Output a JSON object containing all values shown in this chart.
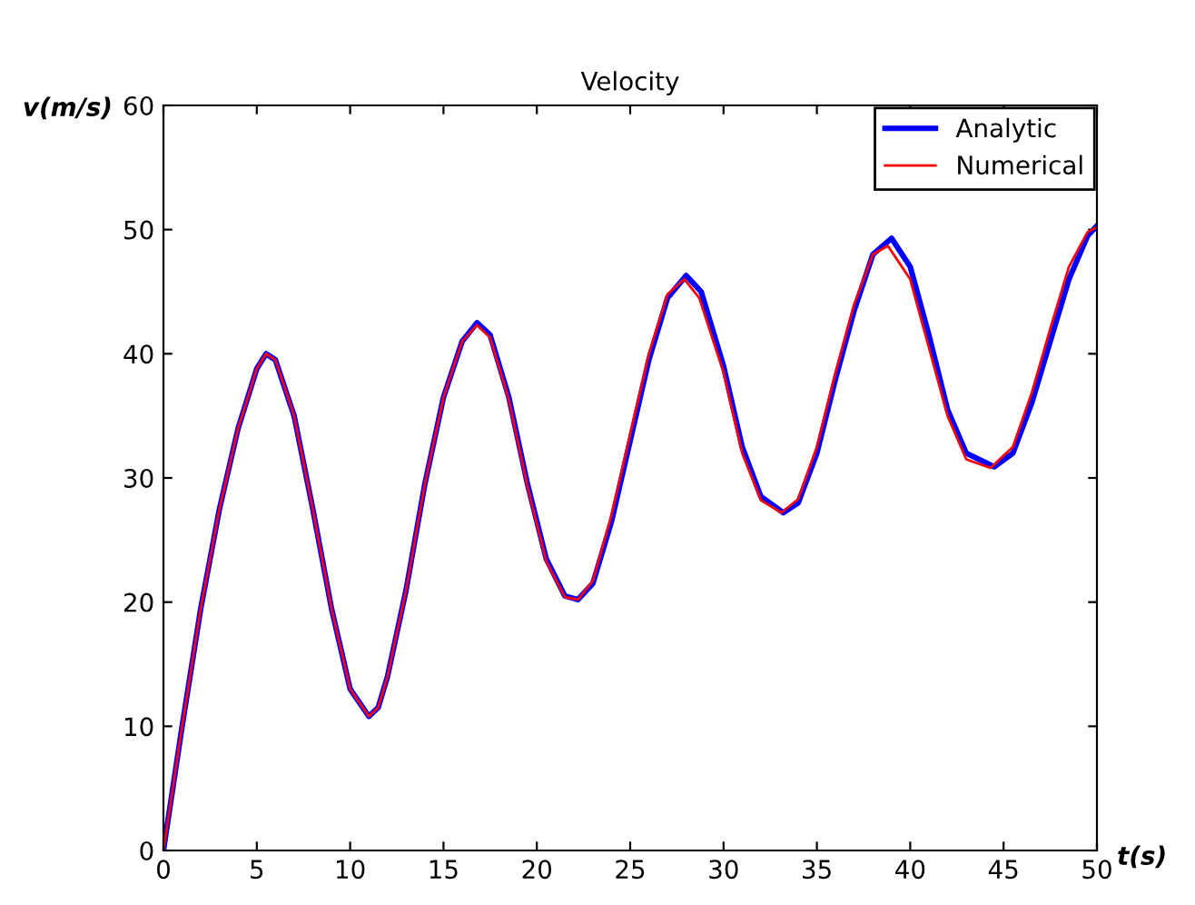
{
  "chart_data": {
    "type": "line",
    "title": "Velocity",
    "xlabel": "t(s)",
    "ylabel": "v(m/s)",
    "xlim": [
      0,
      50
    ],
    "ylim": [
      0,
      60
    ],
    "xticks": [
      0,
      5,
      10,
      15,
      20,
      25,
      30,
      35,
      40,
      45,
      50
    ],
    "yticks": [
      0,
      10,
      20,
      30,
      40,
      50,
      60
    ],
    "grid": false,
    "legend": "top right",
    "series": [
      {
        "name": "Analytic",
        "color": "#0000ff",
        "x": [
          0,
          1,
          2,
          3,
          4,
          5,
          5.5,
          6,
          7,
          8,
          9,
          10,
          11,
          11.5,
          12,
          13,
          14,
          15,
          16,
          16.8,
          17.5,
          18.5,
          19.5,
          20.5,
          21.5,
          22.2,
          23,
          24,
          25,
          26,
          27,
          28,
          28.8,
          30,
          31,
          32,
          33.2,
          34,
          35,
          36,
          37,
          38,
          39,
          40,
          41,
          42,
          43,
          44.5,
          45.5,
          46.5,
          47.5,
          48.5,
          49.5,
          50
        ],
        "values": [
          0,
          10,
          19.5,
          27.5,
          34,
          38.8,
          40,
          39.5,
          35,
          27.5,
          19.5,
          13,
          10.8,
          11.5,
          14,
          21,
          29.5,
          36.5,
          41,
          42.5,
          41.5,
          36.5,
          29.5,
          23.5,
          20.5,
          20.2,
          21.5,
          26.5,
          33,
          39.5,
          44.5,
          46.3,
          45,
          39,
          32.5,
          28.5,
          27.2,
          28,
          32,
          38,
          43.5,
          48,
          49.3,
          47,
          41.5,
          35.5,
          32,
          30.9,
          32,
          36,
          41,
          46,
          49.5,
          50.3
        ]
      },
      {
        "name": "Numerical",
        "color": "#ff0000",
        "x": [
          0,
          1,
          2,
          3,
          4,
          5,
          5.5,
          6,
          7,
          8,
          9,
          10,
          11,
          11.5,
          12,
          13,
          14,
          15,
          16,
          16.8,
          17.5,
          18.5,
          19.5,
          20.5,
          21.5,
          22.2,
          23,
          24,
          25,
          26,
          27,
          27.9,
          28.7,
          30,
          31,
          32,
          33.1,
          34,
          35,
          36,
          37,
          38,
          38.8,
          40,
          41,
          42,
          43,
          44.3,
          45.5,
          46.5,
          47.5,
          48.5,
          49.5,
          50
        ],
        "values": [
          0,
          10,
          19.5,
          27.5,
          34,
          38.8,
          40,
          39.5,
          35,
          27.5,
          19.5,
          13,
          10.8,
          11.5,
          14,
          21,
          29.5,
          36.5,
          41,
          42.3,
          41.3,
          36.3,
          29.3,
          23.3,
          20.4,
          20.2,
          21.7,
          27,
          33.5,
          40,
          44.8,
          46,
          44.5,
          38.5,
          32,
          28.2,
          27.2,
          28.3,
          32.5,
          38.5,
          44,
          48,
          48.7,
          46,
          40.5,
          35,
          31.5,
          30.8,
          32.5,
          36.8,
          42,
          47,
          49.8,
          50.2
        ]
      }
    ]
  }
}
